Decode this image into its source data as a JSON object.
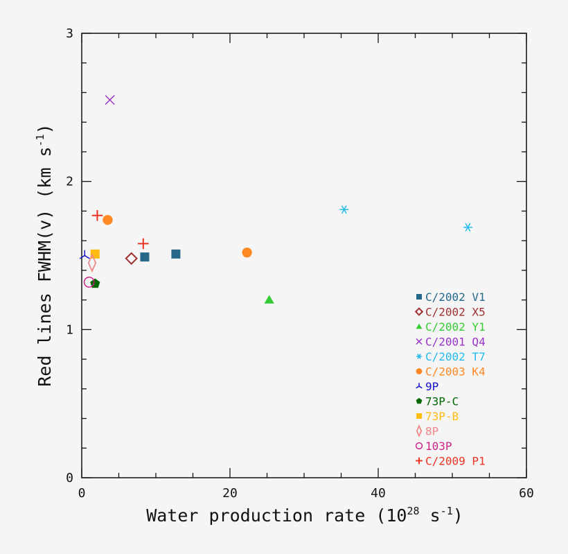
{
  "chart_data": {
    "type": "scatter",
    "title": "",
    "xlabel": "Water production rate (10",
    "xlabel_sup": "28",
    "xlabel_tail": " s",
    "xlabel_tail_sup": "-1",
    "xlabel_close": ")",
    "ylabel": "Red lines FWHM(v) (km s",
    "ylabel_sup": "-1",
    "ylabel_close": ")",
    "xlim": [
      0,
      60
    ],
    "ylim": [
      0,
      3
    ],
    "xticks": [
      0,
      20,
      40,
      60
    ],
    "yticks": [
      0,
      1,
      2,
      3
    ],
    "xtick_labels": [
      "0",
      "20",
      "40",
      "60"
    ],
    "ytick_labels": [
      "0",
      "1",
      "2",
      "3"
    ],
    "x_minor_step": 5,
    "y_minor_step": 0.2,
    "grid": false,
    "legend_position": "bottom-right",
    "series": [
      {
        "name": "C/2002 V1",
        "marker": "filled-square",
        "color": "#26688a",
        "points": [
          [
            8.5,
            1.49
          ],
          [
            12.7,
            1.51
          ]
        ]
      },
      {
        "name": "C/2002 X5",
        "marker": "open-diamond",
        "color": "#a03030",
        "points": [
          [
            6.7,
            1.48
          ]
        ]
      },
      {
        "name": "C/2002 Y1",
        "marker": "filled-triangle",
        "color": "#33cc33",
        "points": [
          [
            25.3,
            1.2
          ]
        ]
      },
      {
        "name": "C/2001 Q4",
        "marker": "cross",
        "color": "#9933cc",
        "points": [
          [
            3.8,
            2.55
          ]
        ]
      },
      {
        "name": "C/2002 T7",
        "marker": "asterisk",
        "color": "#22bbee",
        "points": [
          [
            35.4,
            1.81
          ],
          [
            52.1,
            1.69
          ]
        ]
      },
      {
        "name": "C/2003 K4",
        "marker": "filled-circle",
        "color": "#ff8822",
        "points": [
          [
            3.5,
            1.74
          ],
          [
            22.3,
            1.52
          ]
        ]
      },
      {
        "name": "9P",
        "marker": "tripod",
        "color": "#1111cc",
        "points": [
          [
            0.4,
            1.5
          ]
        ]
      },
      {
        "name": "73P-C",
        "marker": "filled-pentagon",
        "color": "#006600",
        "points": [
          [
            1.8,
            1.31
          ]
        ]
      },
      {
        "name": "73P-B",
        "marker": "filled-square",
        "color": "#ffbb11",
        "points": [
          [
            1.8,
            1.51
          ]
        ]
      },
      {
        "name": "8P",
        "marker": "open-thin-diamond",
        "color": "#ee8888",
        "points": [
          [
            1.4,
            1.45
          ]
        ]
      },
      {
        "name": "103P",
        "marker": "open-circle",
        "color": "#cc2288",
        "points": [
          [
            1.0,
            1.32
          ]
        ]
      },
      {
        "name": "C/2009 P1",
        "marker": "plus",
        "color": "#ee3322",
        "points": [
          [
            2.1,
            1.77
          ],
          [
            8.3,
            1.58
          ]
        ]
      }
    ]
  }
}
